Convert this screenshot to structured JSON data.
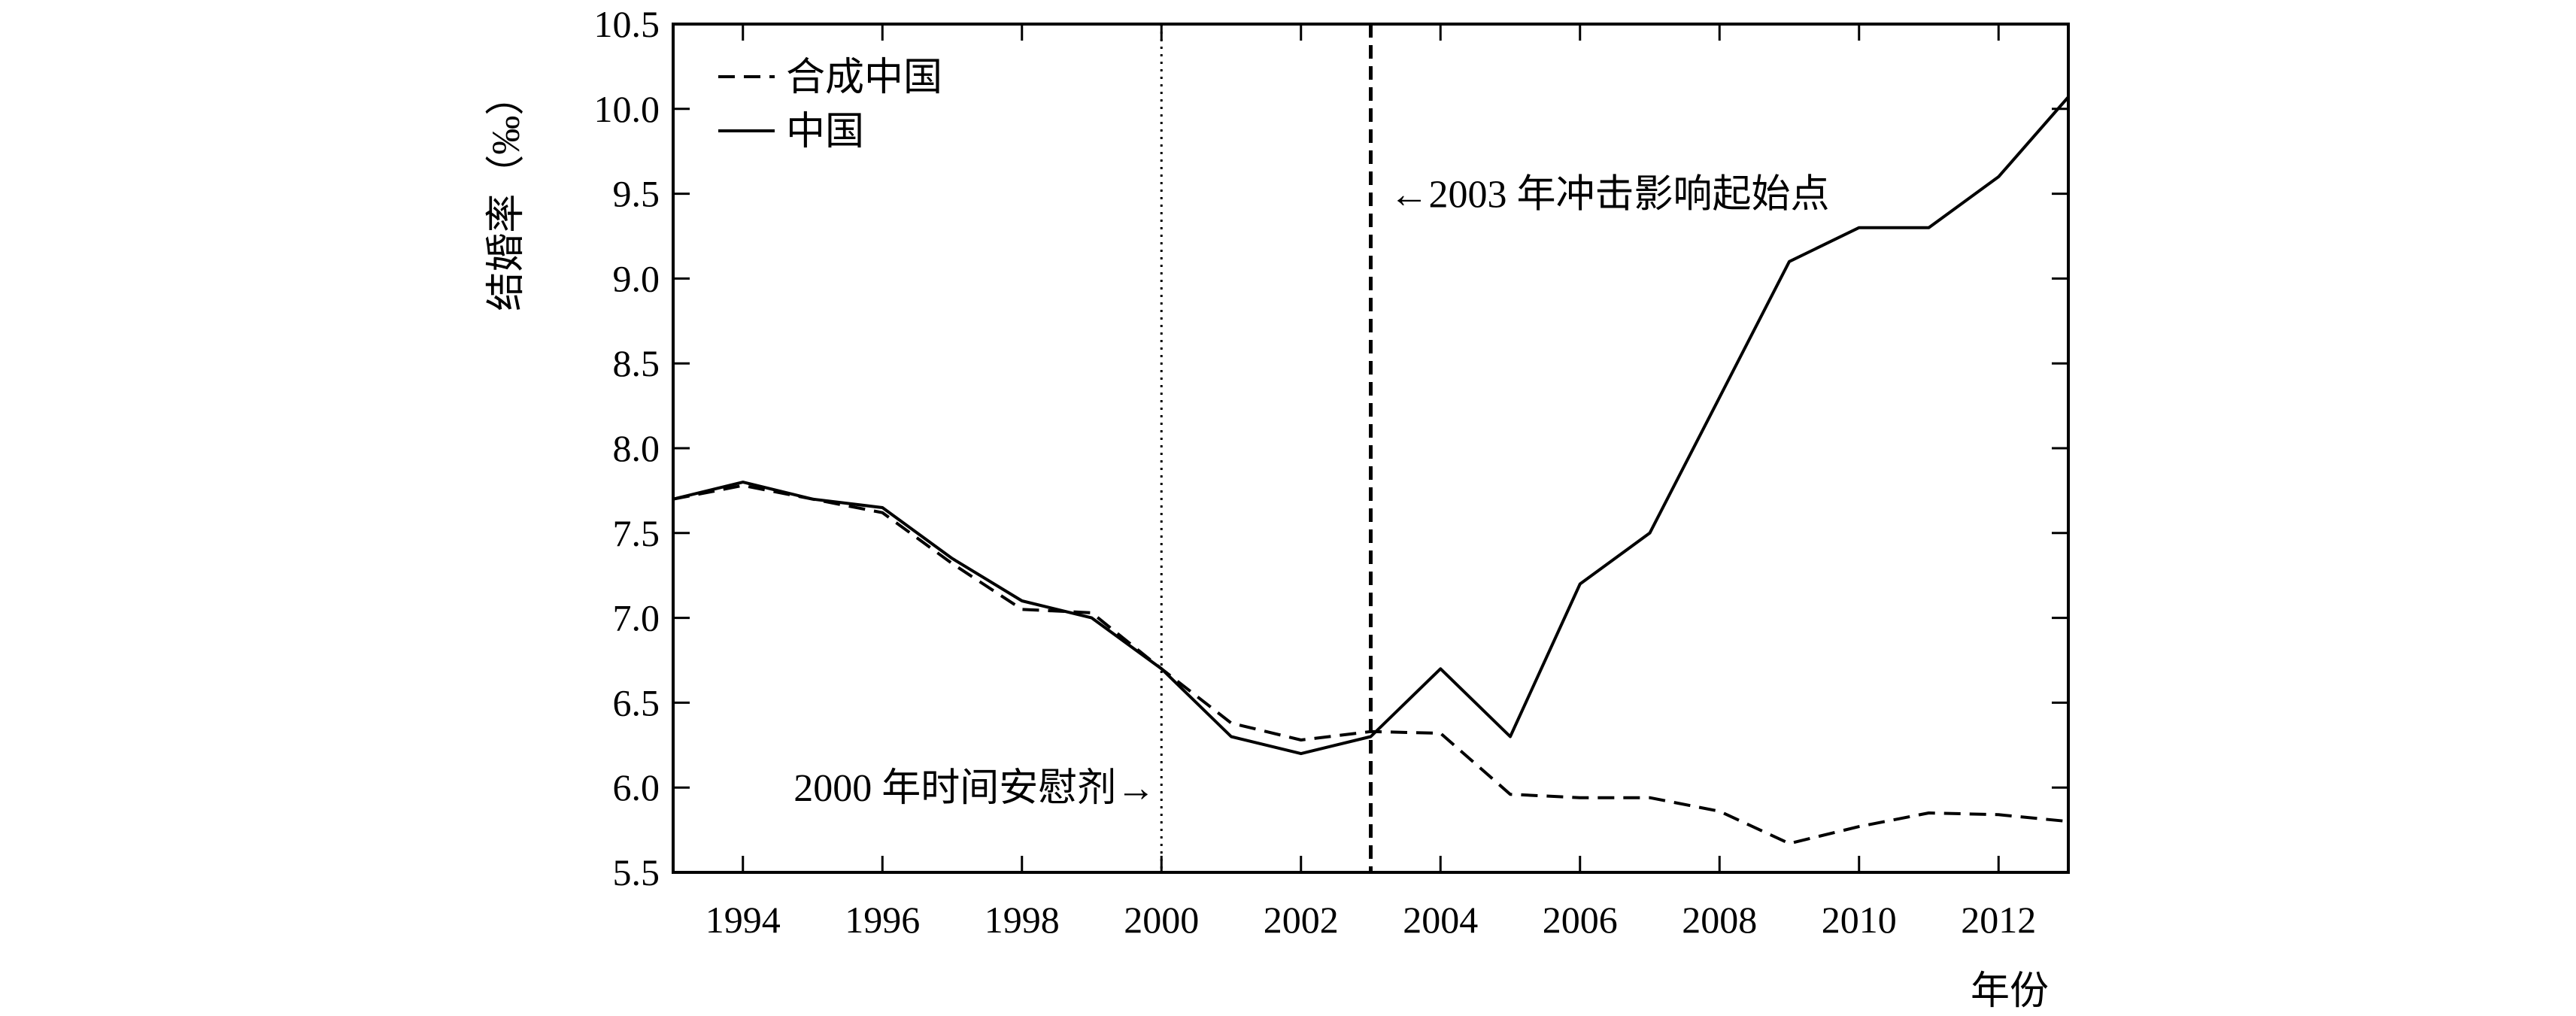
{
  "chart_data": {
    "type": "line",
    "title": "",
    "xlabel": "年份",
    "ylabel": "结婚率（‰）",
    "x": [
      1993,
      1994,
      1995,
      1996,
      1997,
      1998,
      1999,
      2000,
      2001,
      2002,
      2003,
      2004,
      2005,
      2006,
      2007,
      2008,
      2009,
      2010,
      2011,
      2012,
      2013
    ],
    "xlim": [
      1993,
      2013
    ],
    "ylim": [
      5.5,
      10.5
    ],
    "xticks": [
      "1994",
      "1996",
      "1998",
      "2000",
      "2002",
      "2004",
      "2006",
      "2008",
      "2010",
      "2012"
    ],
    "yticks": [
      "5.5",
      "6.0",
      "6.5",
      "7.0",
      "7.5",
      "8.0",
      "8.5",
      "9.0",
      "9.5",
      "10.0",
      "10.5"
    ],
    "grid": false,
    "legend_position": "top-left",
    "series": [
      {
        "name": "合成中国",
        "style": "dashed",
        "color": "#000000",
        "values": [
          7.7,
          7.78,
          7.7,
          7.62,
          7.32,
          7.05,
          7.03,
          6.7,
          6.38,
          6.28,
          6.33,
          6.32,
          5.96,
          5.94,
          5.94,
          5.86,
          5.67,
          5.77,
          5.85,
          5.84,
          5.8
        ]
      },
      {
        "name": "中国",
        "style": "solid",
        "color": "#000000",
        "values": [
          7.7,
          7.8,
          7.7,
          7.65,
          7.35,
          7.1,
          7.0,
          6.7,
          6.3,
          6.2,
          6.3,
          6.7,
          6.3,
          7.2,
          7.5,
          8.3,
          9.1,
          9.3,
          9.3,
          9.6,
          10.07
        ]
      }
    ],
    "reference_lines": [
      {
        "x": 2000,
        "style": "dotted",
        "label": "2000 年时间安慰剂→",
        "label_side": "left"
      },
      {
        "x": 2003,
        "style": "dashed",
        "label": "←2003 年冲击影响起始点",
        "label_side": "right"
      }
    ]
  }
}
